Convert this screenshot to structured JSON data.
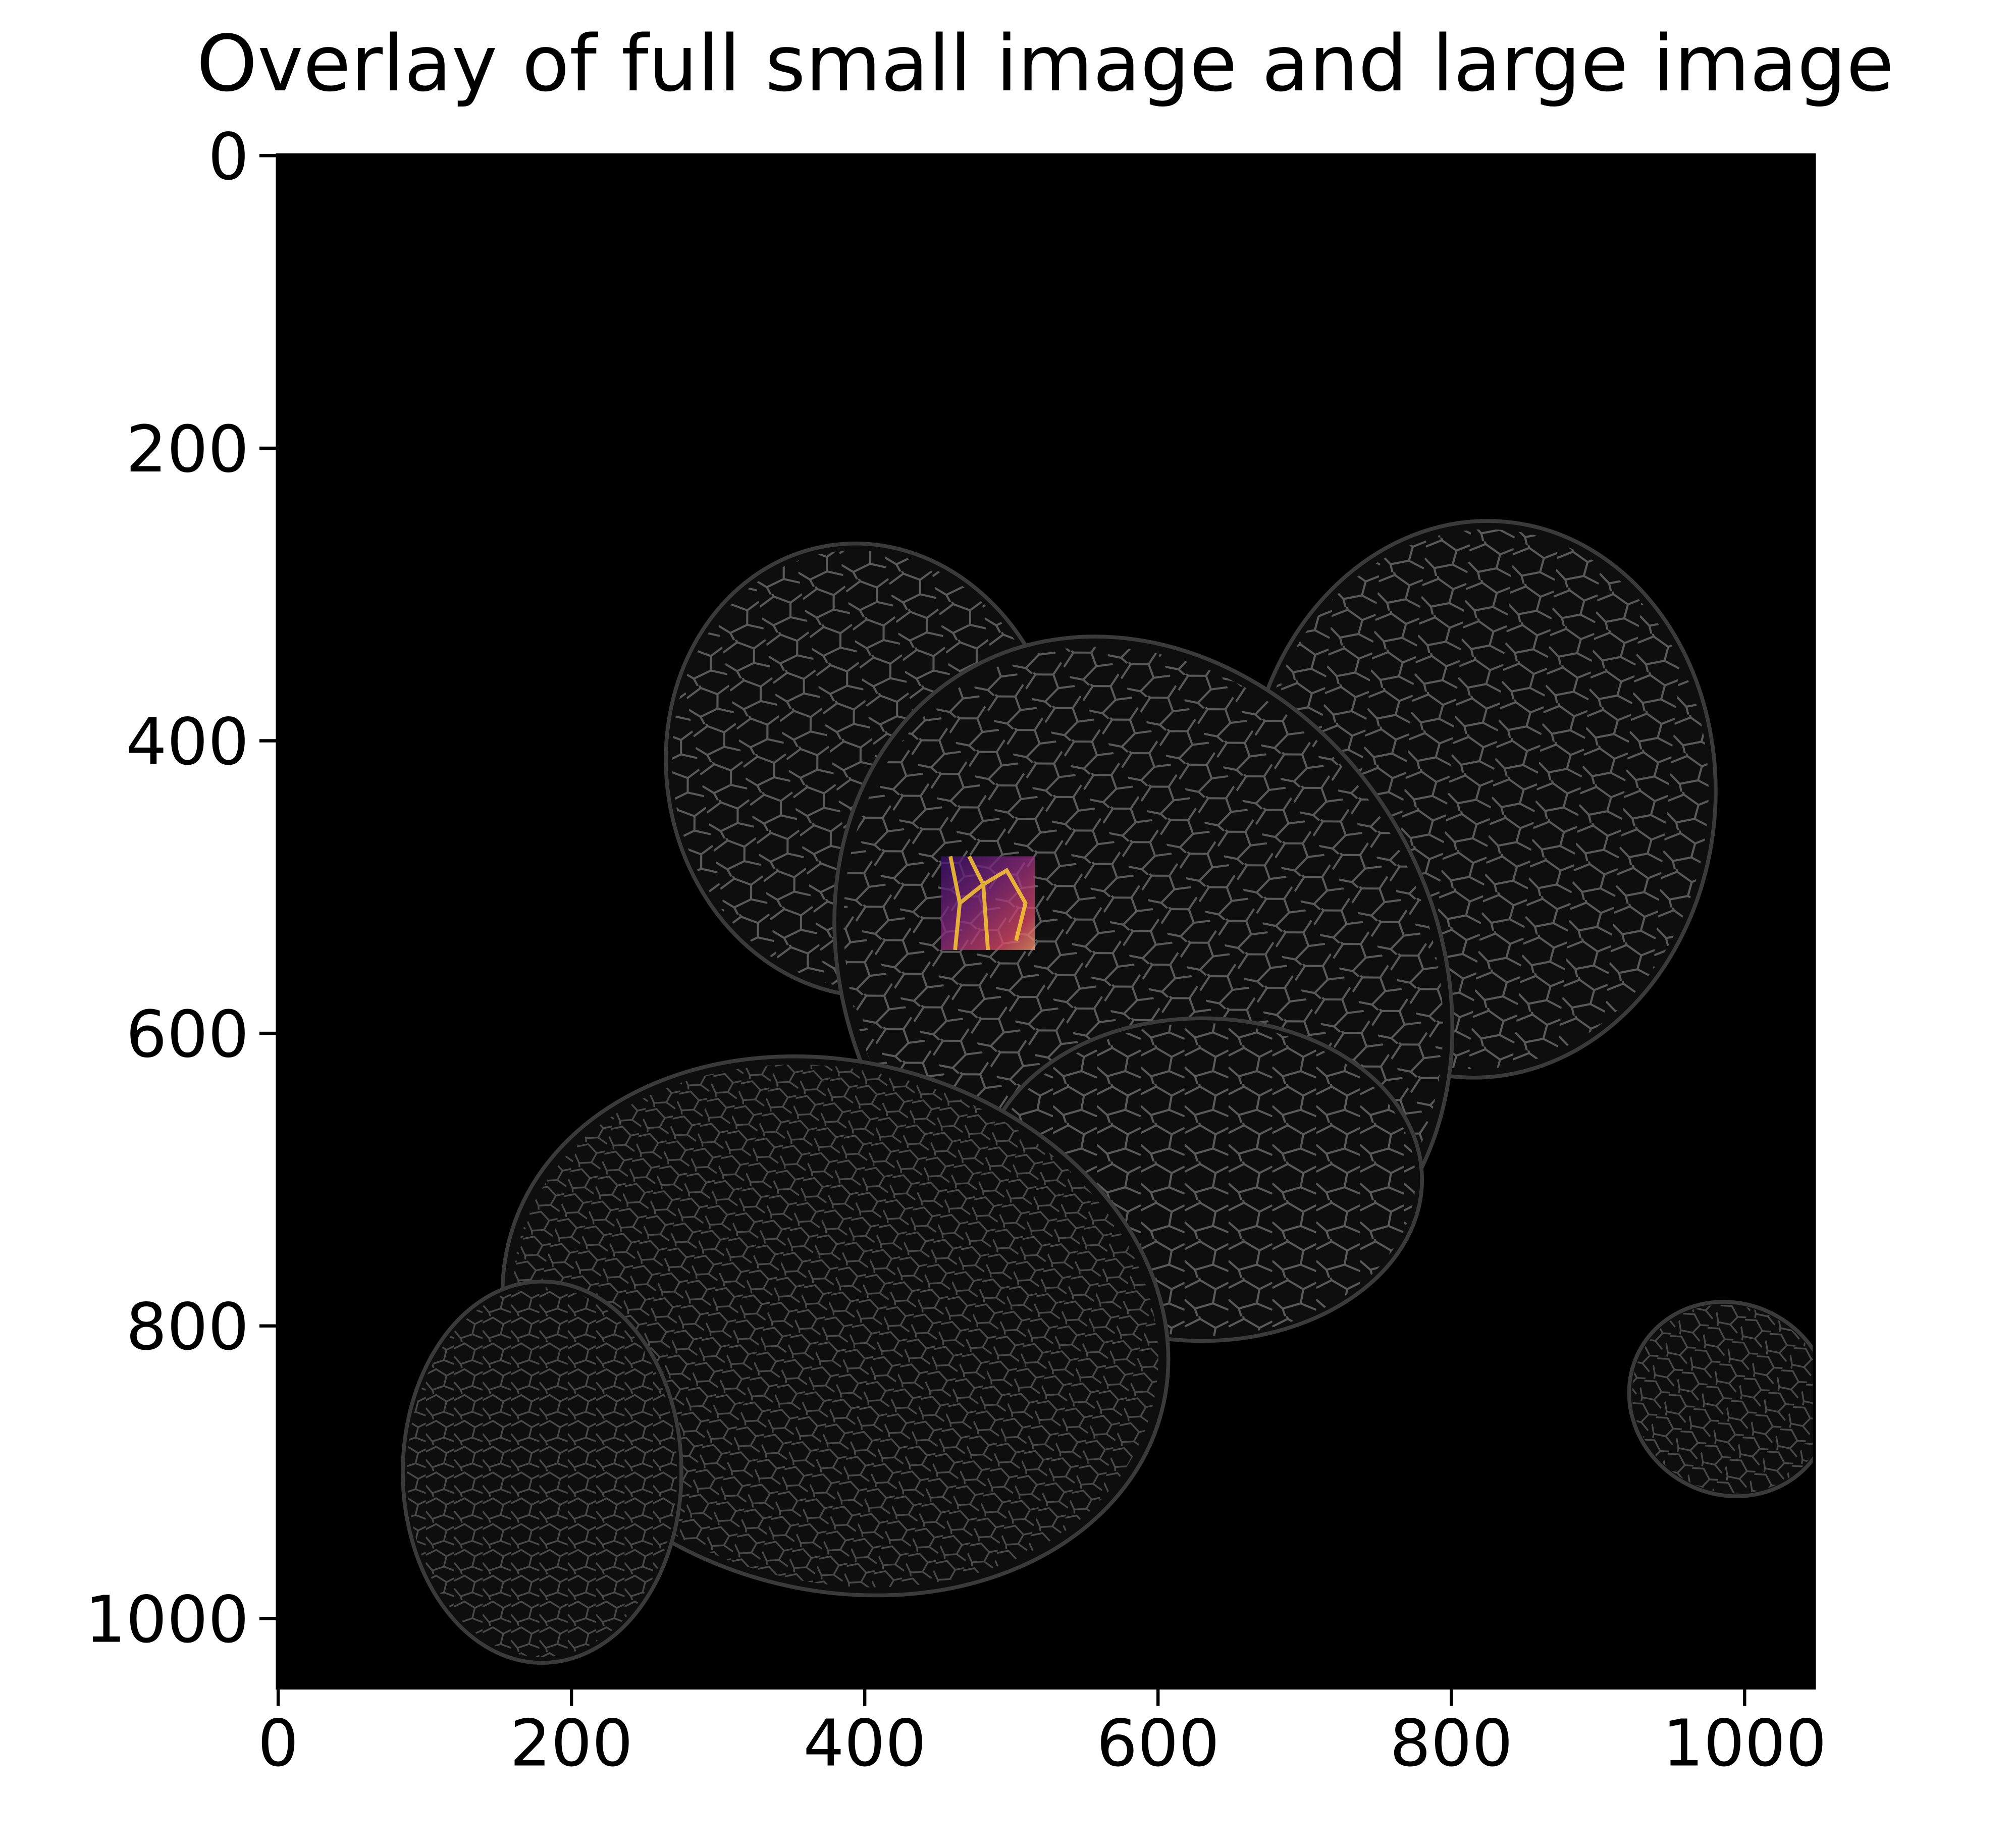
{
  "chart_data": {
    "type": "image",
    "title": "Overlay of full small image and large image",
    "xlim": [
      -0.5,
      1047.5
    ],
    "ylim": [
      1047.5,
      -0.5
    ],
    "xticks": [
      0,
      200,
      400,
      600,
      800,
      1000
    ],
    "yticks": [
      0,
      200,
      400,
      600,
      800,
      1000
    ],
    "colormap": "gray",
    "overlay": {
      "colormap": "inferno",
      "xlim": [
        452,
        516
      ],
      "ylim": [
        479,
        543
      ]
    }
  }
}
